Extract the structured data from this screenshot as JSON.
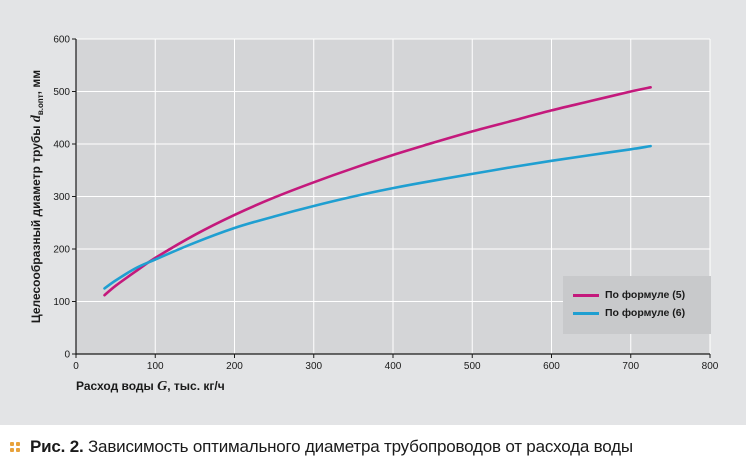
{
  "chart_data": {
    "type": "line",
    "xlabel_main": "Расход воды ",
    "xlabel_var": "G",
    "xlabel_unit": ", тыс. кг/ч",
    "ylabel_main": "Целесообразный диаметр трубы ",
    "ylabel_var": "d",
    "ylabel_sub": "в.опт",
    "ylabel_unit": ", мм",
    "xlim": [
      0,
      800
    ],
    "ylim": [
      0,
      600
    ],
    "xticks": [
      0,
      100,
      200,
      300,
      400,
      500,
      600,
      700,
      800
    ],
    "yticks": [
      0,
      100,
      200,
      300,
      400,
      500,
      600
    ],
    "grid": true,
    "legend_position": "bottom-right",
    "series": [
      {
        "name": "По формуле (5)",
        "color": "#c4197c",
        "x": [
          36,
          50,
          75,
          100,
          150,
          200,
          250,
          300,
          350,
          400,
          450,
          500,
          550,
          600,
          650,
          700,
          725
        ],
        "y": [
          112,
          130,
          157,
          183,
          227,
          265,
          298,
          327,
          354,
          379,
          402,
          424,
          444,
          464,
          482,
          500,
          508
        ]
      },
      {
        "name": "По формуле (6)",
        "color": "#1f9fd1",
        "x": [
          36,
          50,
          75,
          100,
          150,
          200,
          250,
          300,
          350,
          400,
          450,
          500,
          550,
          600,
          650,
          700,
          725
        ],
        "y": [
          125,
          140,
          163,
          180,
          212,
          240,
          262,
          282,
          300,
          316,
          330,
          343,
          356,
          368,
          379,
          390,
          396
        ]
      }
    ]
  },
  "caption": {
    "label": "Рис. 2.",
    "text": " Зависимость оптимального диаметра трубопроводов от расхода воды"
  }
}
